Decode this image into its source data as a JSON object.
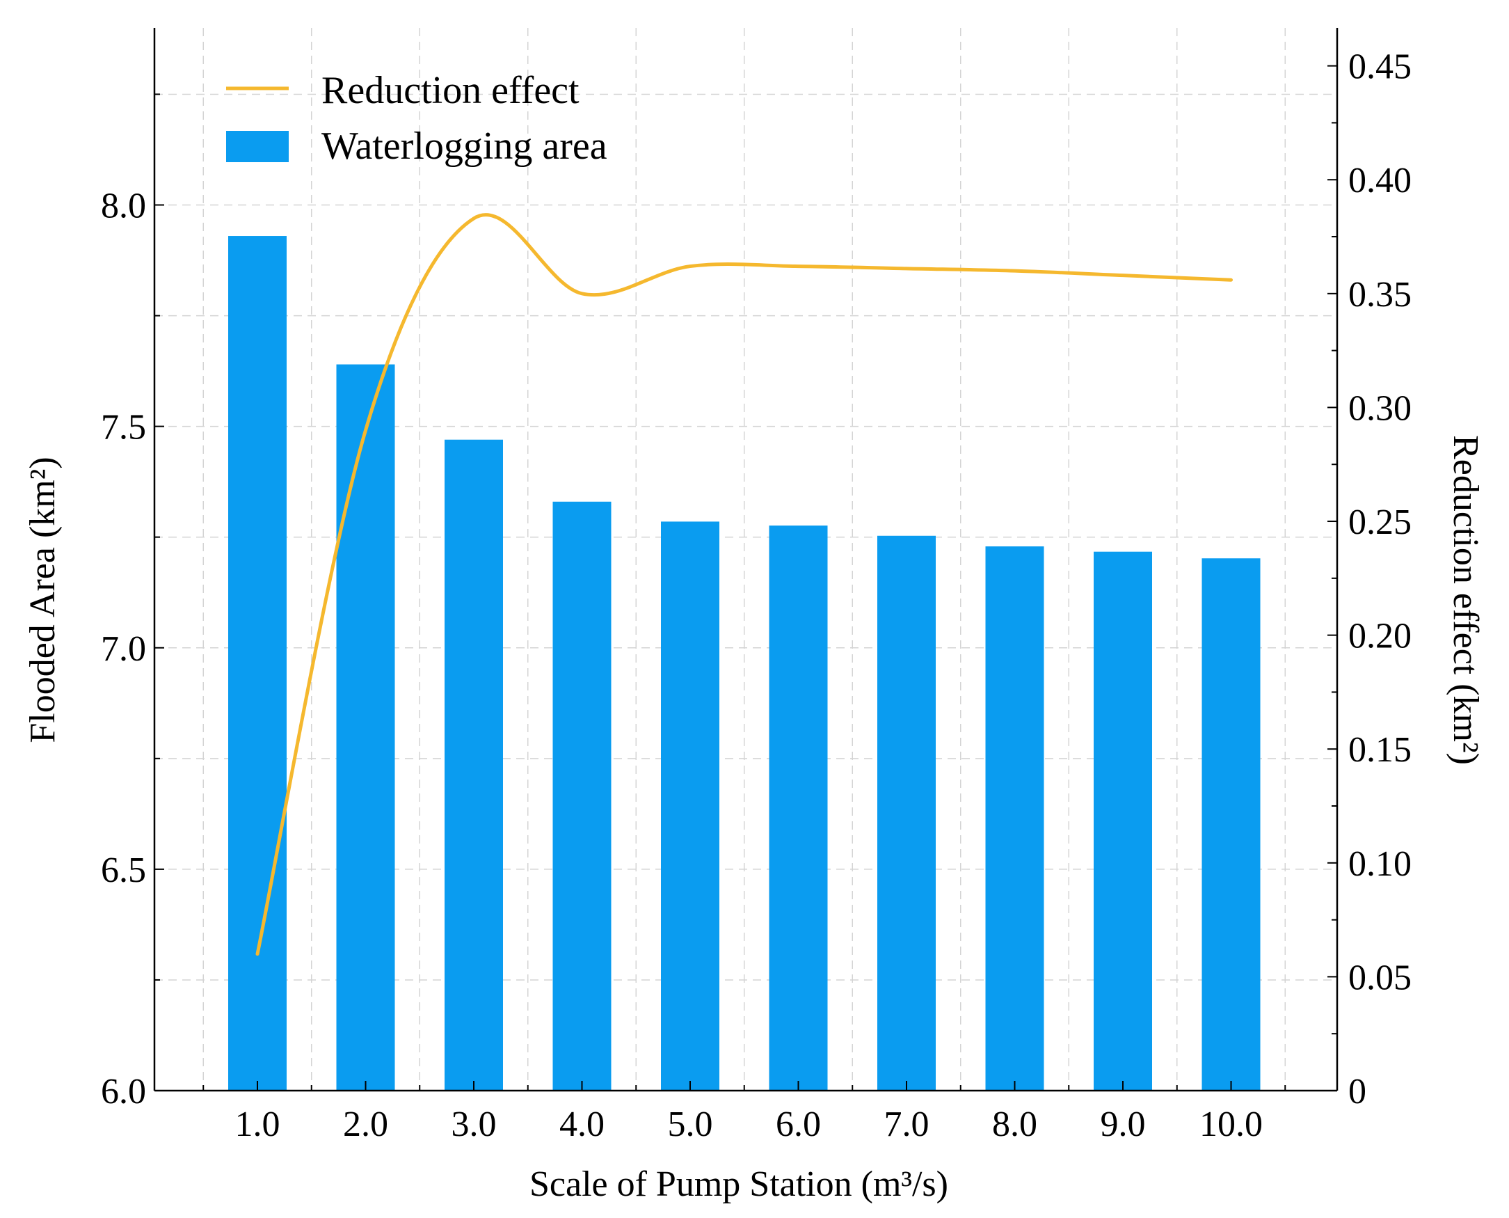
{
  "chart_data": {
    "type": "bar",
    "categories": [
      "1.0",
      "2.0",
      "3.0",
      "4.0",
      "5.0",
      "6.0",
      "7.0",
      "8.0",
      "9.0",
      "10.0"
    ],
    "series": [
      {
        "name": "Waterlogging area",
        "type": "bar",
        "axis": "left",
        "color": "#0A9CF0",
        "values": [
          7.93,
          7.64,
          7.47,
          7.33,
          7.285,
          7.276,
          7.253,
          7.229,
          7.217,
          7.202
        ]
      },
      {
        "name": "Reduction effect",
        "type": "line",
        "axis": "right",
        "color": "#F5B82E",
        "values": [
          0.06,
          0.29,
          0.383,
          0.35,
          0.362,
          0.362,
          0.361,
          0.36,
          0.358,
          0.356
        ]
      }
    ],
    "xlabel": "Scale of Pump Station (m³/s)",
    "ylabel": "Flooded Area (km²)",
    "y2label": "Reduction effect (km²)",
    "ylim": [
      6.0,
      8.4
    ],
    "y2lim": [
      0,
      0.4667
    ],
    "yticks": [
      "6.0",
      "6.5",
      "7.0",
      "7.5",
      "8.0"
    ],
    "y2ticks": [
      "0",
      "0.05",
      "0.10",
      "0.15",
      "0.20",
      "0.25",
      "0.30",
      "0.35",
      "0.40",
      "0.45"
    ],
    "grid": true,
    "legend": "top-left"
  }
}
